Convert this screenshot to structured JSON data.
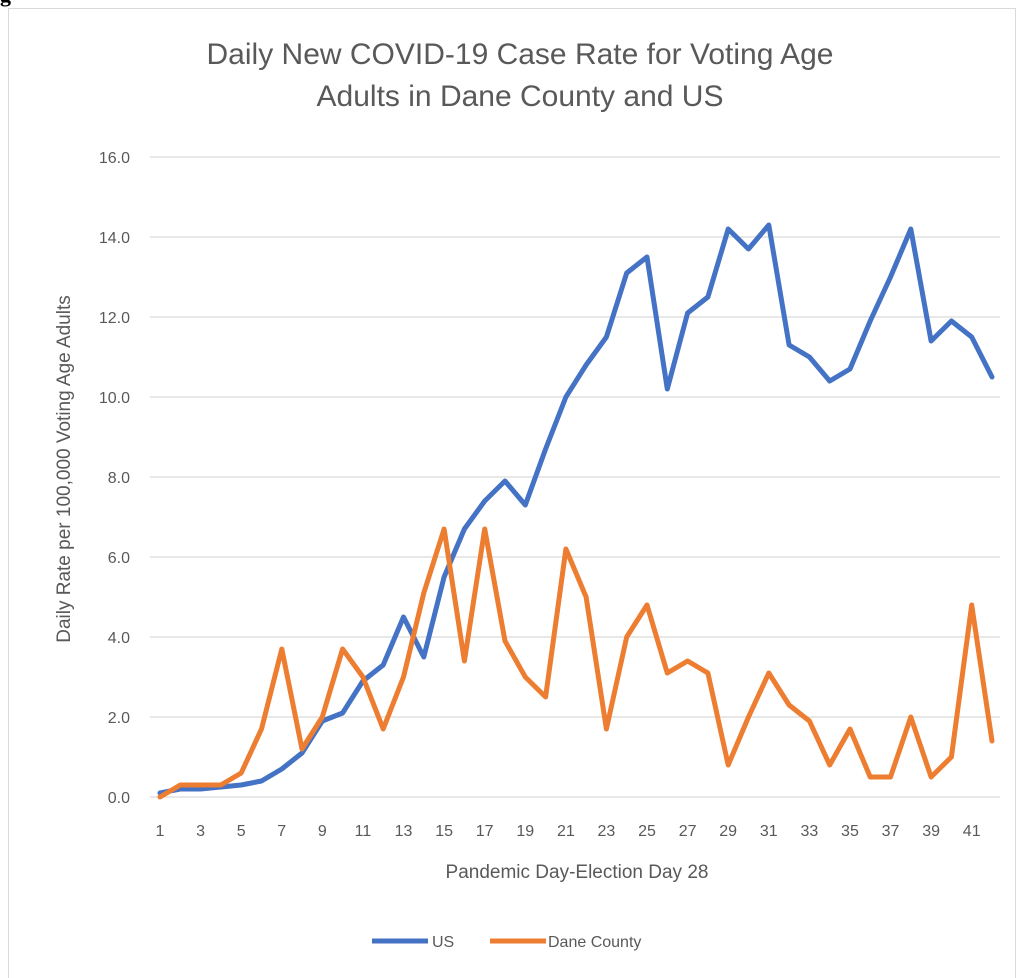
{
  "figure": {
    "label": "g"
  },
  "chart_data": {
    "type": "line",
    "title": [
      "Daily New COVID-19 Case Rate for Voting Age",
      "Adults in Dane County and US"
    ],
    "xlabel": "Pandemic Day-Election Day 28",
    "ylabel": "Daily Rate per 100,000 Voting Age Adults",
    "ylim": [
      0,
      16
    ],
    "yticks": [
      "0.0",
      "2.0",
      "4.0",
      "6.0",
      "8.0",
      "10.0",
      "12.0",
      "14.0",
      "16.0"
    ],
    "xticks": [
      "1",
      "3",
      "5",
      "7",
      "9",
      "11",
      "13",
      "15",
      "17",
      "19",
      "21",
      "23",
      "25",
      "27",
      "29",
      "31",
      "33",
      "35",
      "37",
      "39",
      "41"
    ],
    "x": [
      1,
      2,
      3,
      4,
      5,
      6,
      7,
      8,
      9,
      10,
      11,
      12,
      13,
      14,
      15,
      16,
      17,
      18,
      19,
      20,
      21,
      22,
      23,
      24,
      25,
      26,
      27,
      28,
      29,
      30,
      31,
      32,
      33,
      34,
      35,
      36,
      37,
      38,
      39,
      40,
      41,
      42
    ],
    "grid": true,
    "legend_position": "bottom",
    "series": [
      {
        "name": "US",
        "color": "#4472c4",
        "values": [
          0.1,
          0.2,
          0.2,
          0.25,
          0.3,
          0.4,
          0.7,
          1.1,
          1.9,
          2.1,
          2.9,
          3.3,
          4.5,
          3.5,
          5.5,
          6.7,
          7.4,
          7.9,
          7.3,
          8.7,
          10.0,
          10.8,
          11.5,
          13.1,
          13.5,
          10.2,
          12.1,
          12.5,
          14.2,
          13.7,
          14.3,
          11.3,
          11.0,
          10.4,
          10.7,
          11.9,
          13.0,
          14.2,
          11.4,
          11.9,
          11.5,
          10.5
        ]
      },
      {
        "name": "Dane County",
        "color": "#ed7d31",
        "values": [
          0.0,
          0.3,
          0.3,
          0.3,
          0.6,
          1.7,
          3.7,
          1.2,
          2.0,
          3.7,
          3.0,
          1.7,
          3.0,
          5.1,
          6.7,
          3.4,
          6.7,
          3.9,
          3.0,
          2.5,
          6.2,
          5.0,
          1.7,
          4.0,
          4.8,
          3.1,
          3.4,
          3.1,
          0.8,
          2.0,
          3.1,
          2.3,
          1.9,
          0.8,
          1.7,
          0.5,
          0.5,
          2.0,
          0.5,
          1.0,
          4.8,
          1.4
        ]
      }
    ]
  }
}
